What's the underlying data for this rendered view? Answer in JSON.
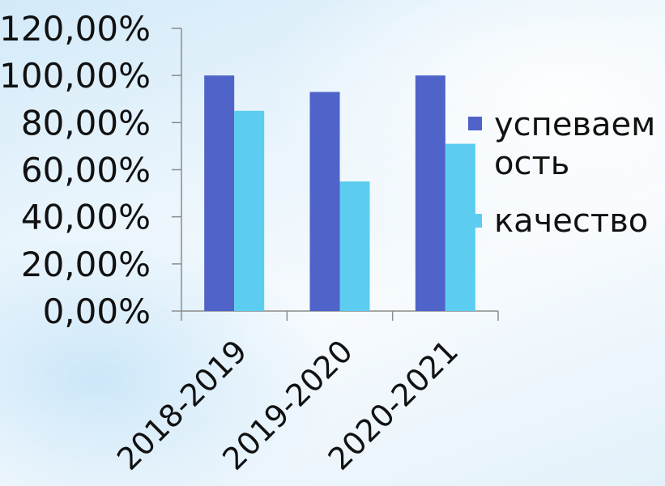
{
  "chart_data": {
    "type": "bar",
    "title": "",
    "xlabel": "",
    "ylabel": "",
    "categories": [
      "2018-2019",
      "2019-2020",
      "2020-2021"
    ],
    "series": [
      {
        "name": "успеваемость",
        "legend_lines": [
          "успеваем",
          "ость"
        ],
        "color": "#4f63c9",
        "values": [
          1.0,
          0.93,
          1.0
        ]
      },
      {
        "name": "качество",
        "legend_lines": [
          "качество"
        ],
        "color": "#5ccdf0",
        "values": [
          0.85,
          0.55,
          0.71
        ]
      }
    ],
    "ylim": [
      0,
      1.2
    ],
    "y_ticks": [
      "0,00%",
      "20,00%",
      "40,00%",
      "60,00%",
      "80,00%",
      "100,00%",
      "120,00%"
    ],
    "grid": false,
    "legend_position": "right"
  }
}
